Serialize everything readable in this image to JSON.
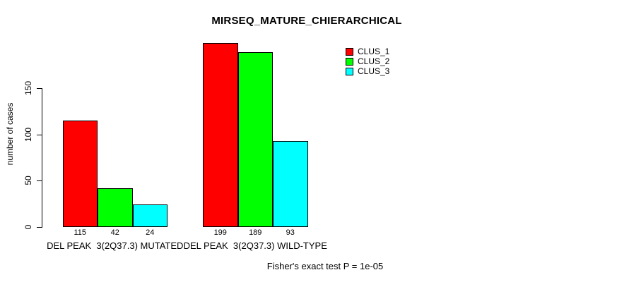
{
  "chart_data": {
    "type": "bar",
    "title": "MIRSEQ_MATURE_CHIERARCHICAL",
    "ylabel": "number of cases",
    "yticks": [
      0,
      50,
      100,
      150
    ],
    "ylim": [
      0,
      150
    ],
    "grid": false,
    "legend_position": "top-right",
    "categories": [
      "DEL PEAK  3(2Q37.3) MUTATED",
      "DEL PEAK  3(2Q37.3) WILD-TYPE"
    ],
    "series": [
      {
        "name": "CLUS_1",
        "color": "#FF0000",
        "values": [
          115,
          199
        ]
      },
      {
        "name": "CLUS_2",
        "color": "#00FF00",
        "values": [
          42,
          189
        ]
      },
      {
        "name": "CLUS_3",
        "color": "#00FFFF",
        "values": [
          24,
          93
        ]
      }
    ],
    "bar_value_labels": [
      [
        115,
        42,
        24
      ],
      [
        199,
        189,
        93
      ]
    ],
    "footer": "Fisher's exact test P = 1e-05",
    "background": "#FFFFFF",
    "axis_color": "#000000"
  }
}
